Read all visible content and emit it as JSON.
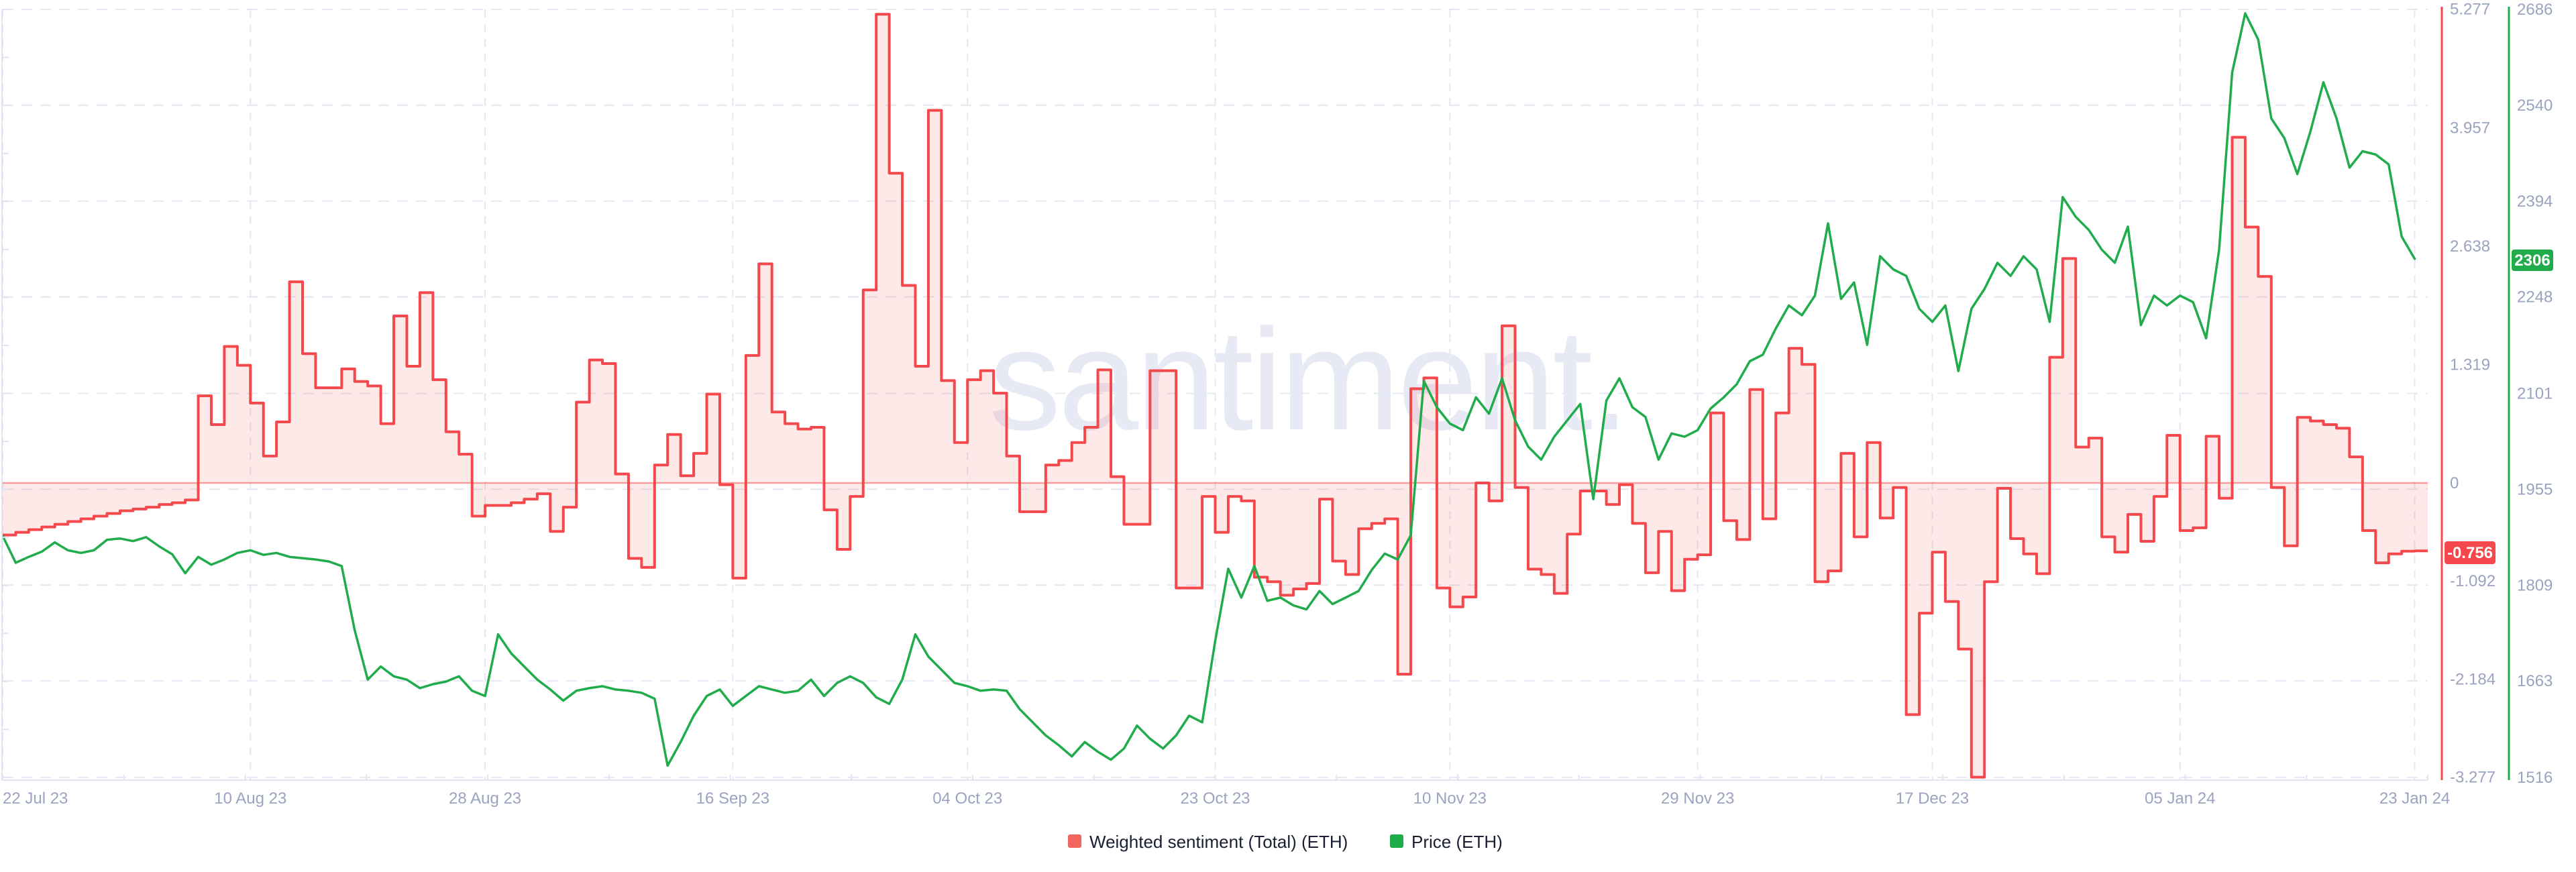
{
  "watermark": "santiment.",
  "legend": {
    "sentiment_label": "Weighted sentiment (Total) (ETH)",
    "price_label": "Price (ETH)"
  },
  "badges": {
    "sentiment_current": "-0.756",
    "price_current": "2306"
  },
  "colors": {
    "sentiment_line": "#f4484d",
    "sentiment_fill": "rgba(244,72,77,0.12)",
    "zero_line": "rgba(244,72,77,0.5)",
    "price_line": "#21ac4b",
    "grid": "#e4e8f2",
    "axis_border": "#e0e4ef",
    "tick_text": "#9aa3bf",
    "sentiment_badge_bg": "#f4484d",
    "price_badge_bg": "#21ac4b"
  },
  "chart_data": {
    "type": "line",
    "title": "",
    "xlabel": "",
    "ylabel_left": "Weighted sentiment",
    "ylabel_right": "Price (ETH)",
    "grid": true,
    "legend_position": "bottom-center",
    "start_date": "22 Jul 23",
    "end_date": "23 Jan 24",
    "x_tick_labels": [
      "22 Jul 23",
      "10 Aug 23",
      "28 Aug 23",
      "16 Sep 23",
      "04 Oct 23",
      "23 Oct 23",
      "10 Nov 23",
      "29 Nov 23",
      "17 Dec 23",
      "05 Jan 24",
      "23 Jan 24"
    ],
    "x_tick_day_index": [
      0,
      19,
      37,
      56,
      74,
      93,
      111,
      130,
      148,
      167,
      185
    ],
    "sentiment_axis_ticks": [
      "5.277",
      "3.957",
      "2.638",
      "1.319",
      "0",
      "-1.092",
      "-2.184",
      "-3.277"
    ],
    "sentiment_axis_values": [
      5.277,
      3.957,
      2.638,
      1.319,
      0,
      -1.092,
      -2.184,
      -3.277
    ],
    "price_axis_ticks": [
      "2686",
      "2540",
      "2394",
      "2248",
      "2101",
      "1955",
      "1809",
      "1663",
      "1516"
    ],
    "price_axis_values": [
      2686,
      2540,
      2394,
      2248,
      2101,
      1955,
      1809,
      1663,
      1516
    ],
    "ylim_sentiment": [
      -3.277,
      5.277
    ],
    "ylim_price": [
      1516,
      2686
    ],
    "sentiment_current_value": -0.756,
    "price_current_value": 2306,
    "series": [
      {
        "name": "Weighted sentiment (Total) (ETH)",
        "style": "step-area",
        "values": [
          -0.58,
          -0.55,
          -0.52,
          -0.49,
          -0.46,
          -0.43,
          -0.4,
          -0.37,
          -0.34,
          -0.31,
          -0.29,
          -0.27,
          -0.24,
          -0.22,
          -0.19,
          0.97,
          0.65,
          1.52,
          1.31,
          0.89,
          0.3,
          0.68,
          2.24,
          1.44,
          1.06,
          1.06,
          1.27,
          1.13,
          1.08,
          0.66,
          1.86,
          1.3,
          2.12,
          1.15,
          0.57,
          0.32,
          -0.37,
          -0.25,
          -0.25,
          -0.22,
          -0.18,
          -0.12,
          -0.54,
          -0.27,
          0.9,
          1.37,
          1.33,
          0.1,
          -0.84,
          -0.94,
          0.2,
          0.54,
          0.08,
          0.33,
          0.99,
          -0.02,
          -1.06,
          1.42,
          2.44,
          0.79,
          0.66,
          0.6,
          0.62,
          -0.3,
          -0.74,
          -0.15,
          2.15,
          5.22,
          3.45,
          2.2,
          1.3,
          4.15,
          1.14,
          0.45,
          1.15,
          1.25,
          1.0,
          0.3,
          -0.32,
          -0.32,
          0.2,
          0.25,
          0.45,
          0.62,
          1.26,
          0.07,
          -0.46,
          -0.46,
          1.25,
          1.25,
          -1.17,
          -1.17,
          -0.15,
          -0.55,
          -0.15,
          -0.2,
          -1.05,
          -1.1,
          -1.25,
          -1.18,
          -1.12,
          -0.18,
          -0.87,
          -1.02,
          -0.51,
          -0.45,
          -0.4,
          -2.13,
          1.05,
          1.17,
          -1.17,
          -1.38,
          -1.27,
          0.0,
          -0.2,
          1.75,
          -0.05,
          -0.96,
          -1.02,
          -1.23,
          -0.57,
          -0.09,
          -0.09,
          -0.24,
          -0.02,
          -0.45,
          -1.0,
          -0.54,
          -1.2,
          -0.85,
          -0.8,
          0.78,
          -0.42,
          -0.63,
          1.04,
          -0.4,
          0.78,
          1.5,
          1.32,
          -1.1,
          -0.98,
          0.33,
          -0.6,
          0.45,
          -0.39,
          -0.05,
          -2.58,
          -1.45,
          -0.77,
          -1.32,
          -1.85,
          -3.277,
          -1.1,
          -0.06,
          -0.62,
          -0.79,
          -1.01,
          1.4,
          2.5,
          0.4,
          0.5,
          -0.6,
          -0.77,
          -0.35,
          -0.65,
          -0.15,
          0.53,
          -0.53,
          -0.5,
          0.52,
          -0.17,
          3.85,
          2.85,
          2.3,
          -0.05,
          -0.7,
          0.73,
          0.69,
          0.65,
          0.61,
          0.29,
          -0.53,
          -0.89,
          -0.79,
          -0.76,
          -0.756
        ]
      },
      {
        "name": "Price (ETH)",
        "style": "line",
        "values": [
          1884,
          1843,
          1852,
          1860,
          1874,
          1862,
          1858,
          1862,
          1878,
          1880,
          1876,
          1882,
          1868,
          1856,
          1827,
          1852,
          1840,
          1848,
          1858,
          1862,
          1855,
          1858,
          1852,
          1850,
          1848,
          1845,
          1838,
          1740,
          1665,
          1685,
          1670,
          1665,
          1652,
          1658,
          1662,
          1670,
          1648,
          1640,
          1734,
          1705,
          1685,
          1665,
          1650,
          1633,
          1648,
          1652,
          1655,
          1650,
          1648,
          1645,
          1636,
          1534,
          1570,
          1610,
          1640,
          1650,
          1625,
          1640,
          1655,
          1650,
          1645,
          1648,
          1665,
          1640,
          1660,
          1670,
          1660,
          1638,
          1628,
          1665,
          1734,
          1700,
          1680,
          1660,
          1655,
          1648,
          1650,
          1648,
          1620,
          1600,
          1580,
          1565,
          1548,
          1570,
          1555,
          1543,
          1560,
          1595,
          1575,
          1560,
          1580,
          1610,
          1600,
          1724,
          1834,
          1790,
          1838,
          1785,
          1790,
          1778,
          1772,
          1800,
          1780,
          1790,
          1800,
          1832,
          1857,
          1848,
          1885,
          2120,
          2080,
          2055,
          2045,
          2095,
          2070,
          2124,
          2060,
          2020,
          2000,
          2035,
          2060,
          2085,
          1940,
          2090,
          2124,
          2080,
          2065,
          2000,
          2040,
          2035,
          2045,
          2078,
          2095,
          2115,
          2150,
          2160,
          2200,
          2235,
          2220,
          2250,
          2360,
          2245,
          2270,
          2175,
          2310,
          2290,
          2280,
          2230,
          2210,
          2235,
          2135,
          2230,
          2260,
          2300,
          2280,
          2310,
          2290,
          2210,
          2400,
          2370,
          2350,
          2320,
          2300,
          2355,
          2205,
          2250,
          2235,
          2250,
          2240,
          2185,
          2320,
          2590,
          2680,
          2640,
          2520,
          2490,
          2435,
          2500,
          2575,
          2520,
          2445,
          2470,
          2465,
          2450,
          2340,
          2306
        ]
      }
    ]
  }
}
